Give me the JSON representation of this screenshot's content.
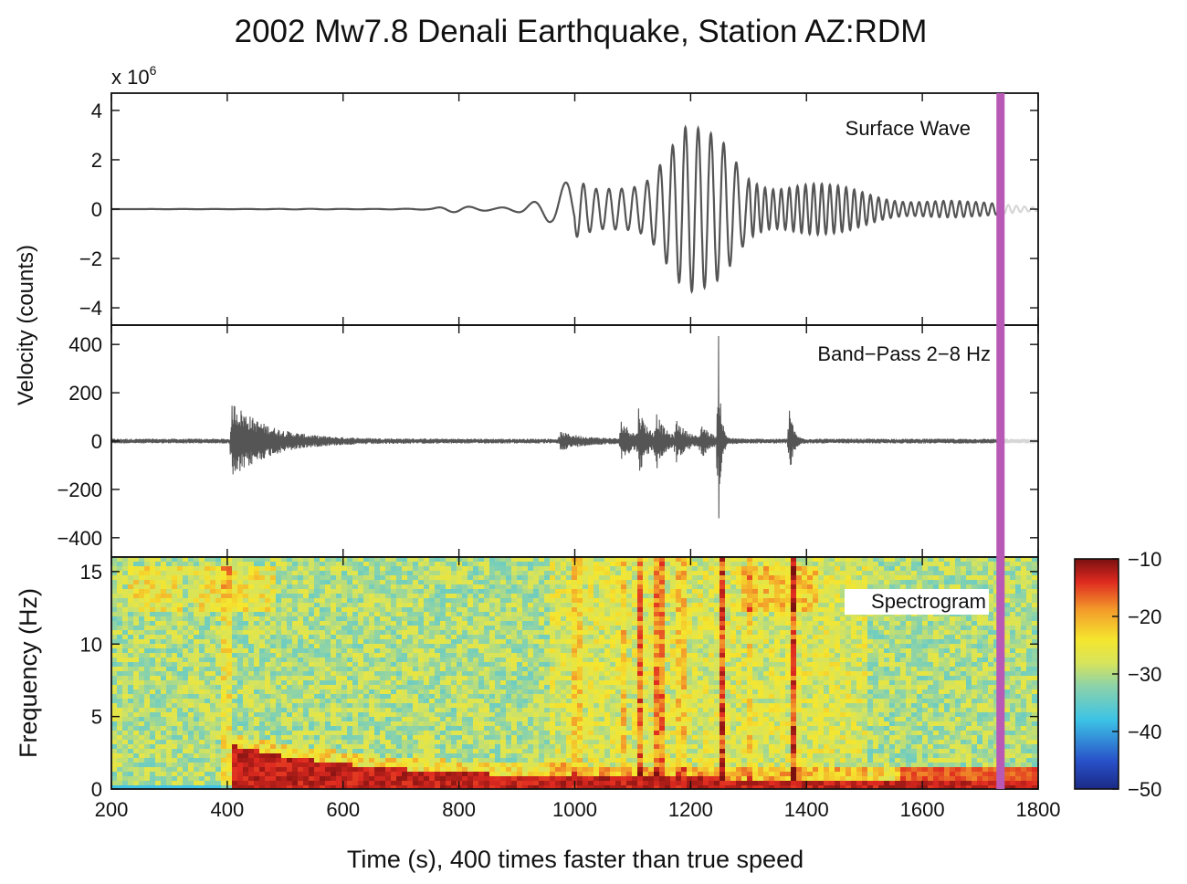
{
  "figure": {
    "title": "2002 Mw7.8 Denali Earthquake, Station AZ:RDM",
    "xlabel": "Time (s), 400 times faster than true speed",
    "shared_ylabel": "Velocity (counts)",
    "exponent_base": "x 10",
    "exponent_power": "6",
    "colors": {
      "trace": "#555555",
      "trace_future": "#d6d6d6",
      "playhead": "#b85ab5",
      "frame": "#111111"
    }
  },
  "chart_data": [
    {
      "type": "line",
      "id": "surface",
      "label": "Surface Wave",
      "xlim": [
        200,
        1800
      ],
      "ylim": [
        -4.7,
        4.7
      ],
      "yticks": [
        4,
        2,
        0,
        -2,
        -4
      ],
      "ytick_labels": [
        "4",
        "2",
        "0",
        "−2",
        "−4"
      ],
      "y_scale_note": "x 10^6",
      "playhead_x": 1735,
      "envelope": {
        "x": [
          200,
          750,
          780,
          800,
          860,
          900,
          930,
          960,
          990,
          1040,
          1080,
          1120,
          1160,
          1190,
          1220,
          1260,
          1300,
          1340,
          1380,
          1440,
          1500,
          1560,
          1620,
          1680,
          1740,
          1800
        ],
        "amplitude": [
          0.0,
          0.02,
          0.12,
          0.15,
          0.1,
          0.2,
          0.4,
          0.6,
          1.2,
          1.0,
          1.5,
          2.0,
          3.1,
          3.6,
          3.2,
          3.0,
          2.0,
          1.6,
          1.4,
          1.0,
          0.8,
          0.6,
          0.45,
          0.3,
          0.25,
          0.15
        ]
      }
    },
    {
      "type": "line",
      "id": "bandpass",
      "label": "Band−Pass 2−8 Hz",
      "xlim": [
        200,
        1800
      ],
      "ylim": [
        -480,
        480
      ],
      "yticks": [
        400,
        200,
        0,
        -200,
        -400
      ],
      "ytick_labels": [
        "400",
        "200",
        "0",
        "−200",
        "−400"
      ],
      "playhead_x": 1735,
      "noise_level": 10,
      "bursts": [
        {
          "t": 408,
          "amp": 160,
          "decay": 60
        },
        {
          "t": 975,
          "amp": 30,
          "decay": 40
        },
        {
          "t": 1080,
          "amp": 80,
          "decay": 20
        },
        {
          "t": 1110,
          "amp": 120,
          "decay": 15
        },
        {
          "t": 1140,
          "amp": 100,
          "decay": 15
        },
        {
          "t": 1175,
          "amp": 70,
          "decay": 20
        },
        {
          "t": 1218,
          "amp": 60,
          "decay": 15
        },
        {
          "t": 1248,
          "amp": 440,
          "decay": 4
        },
        {
          "t": 1370,
          "amp": 170,
          "decay": 6
        }
      ]
    },
    {
      "type": "heatmap",
      "id": "spectrogram",
      "label": "Spectrogram",
      "xlim": [
        200,
        1800
      ],
      "ylim": [
        0,
        16
      ],
      "yticks": [
        15,
        10,
        5,
        0
      ],
      "ytick_labels": [
        "15",
        "10",
        "5",
        "0"
      ],
      "ylabel": "Frequency (Hz)",
      "xticks": [
        200,
        400,
        600,
        800,
        1000,
        1200,
        1400,
        1600,
        1800
      ],
      "xtick_labels": [
        "200",
        "400",
        "600",
        "800",
        "1000",
        "1200",
        "1400",
        "1600",
        "1800"
      ],
      "playhead_x": 1735,
      "colorbar": {
        "range": [
          -50,
          -10
        ],
        "ticks": [
          -10,
          -20,
          -30,
          -40,
          -50
        ],
        "tick_labels": [
          "−10",
          "−20",
          "−30",
          "−40",
          "−50"
        ],
        "colormap": "jet"
      }
    }
  ]
}
